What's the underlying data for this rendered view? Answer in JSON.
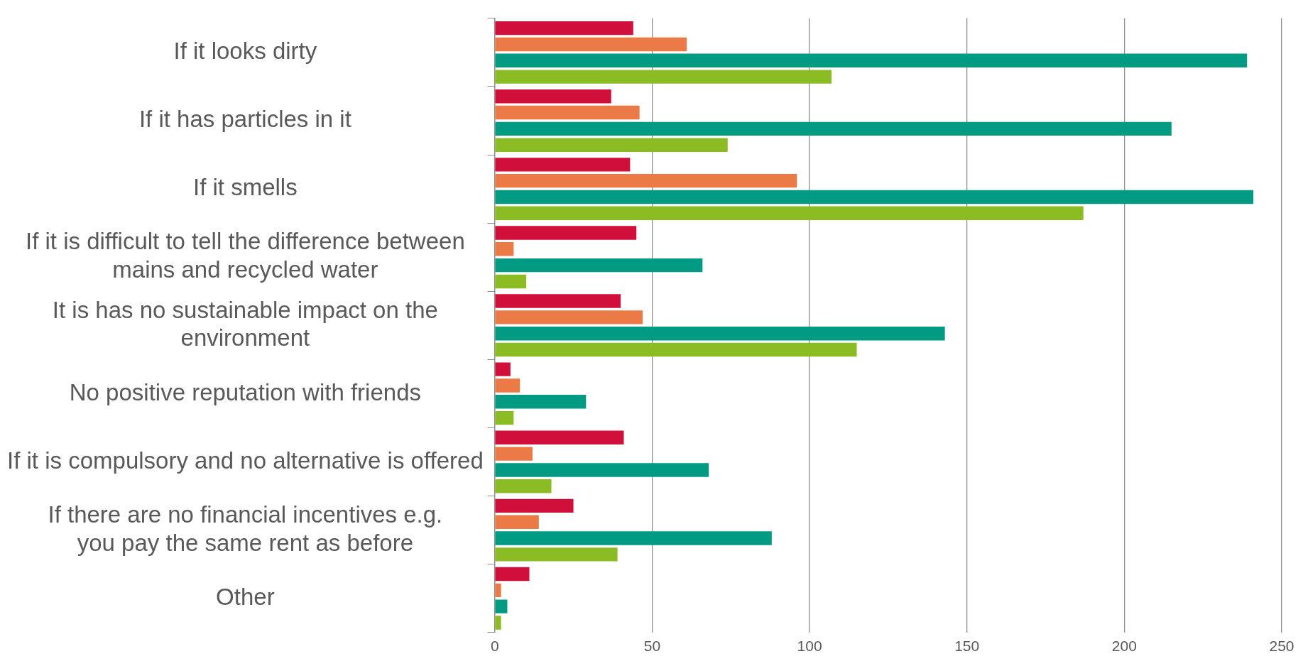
{
  "chart_data": {
    "type": "bar",
    "orientation": "horizontal",
    "categories": [
      "If it looks dirty",
      "If it has particles in it",
      "If it smells",
      "If it is difficult to tell the difference between\nmains and recycled water",
      "It is has no sustainable impact on the\nenvironment",
      "No positive reputation with friends",
      "If it is compulsory and no alternative is offered",
      "If there are no financial incentives e.g.\nyou pay the same rent as before",
      "Other"
    ],
    "series": [
      {
        "color": "#d0103a",
        "values": [
          44,
          37,
          43,
          45,
          40,
          5,
          41,
          25,
          11
        ]
      },
      {
        "color": "#eb7a46",
        "values": [
          61,
          46,
          96,
          6,
          47,
          8,
          12,
          14,
          2
        ]
      },
      {
        "color": "#009b82",
        "values": [
          239,
          215,
          241,
          66,
          143,
          29,
          68,
          88,
          4
        ]
      },
      {
        "color": "#8cbc24",
        "values": [
          107,
          74,
          187,
          10,
          115,
          6,
          18,
          39,
          2
        ]
      }
    ],
    "xlim": [
      0,
      250
    ],
    "xticks": [
      0,
      50,
      100,
      150,
      200,
      250
    ],
    "grid": "x",
    "legend": false
  }
}
